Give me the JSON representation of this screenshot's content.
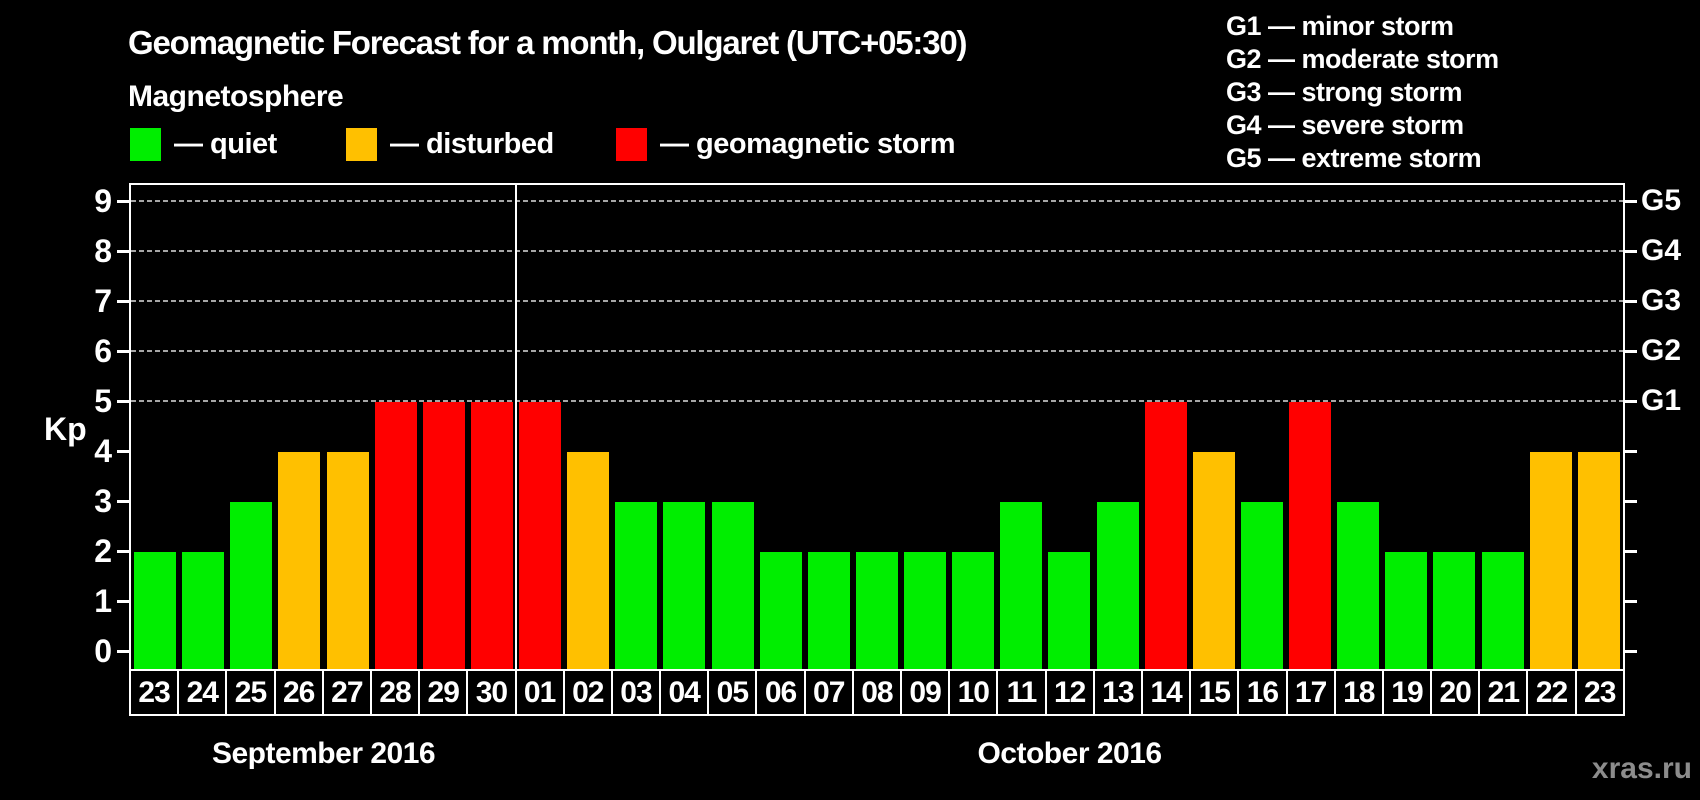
{
  "magnetosphere": {
    "heading": "Magnetosphere",
    "items": [
      {
        "key": "quiet",
        "label": "— quiet",
        "color": "#00ee00"
      },
      {
        "key": "disturbed",
        "label": "— disturbed",
        "color": "#ffc000"
      },
      {
        "key": "storm",
        "label": "— geomagnetic storm",
        "color": "#ff0000"
      }
    ]
  },
  "g_scale_legend": {
    "lines": [
      "G1 — minor storm",
      "G2 — moderate storm",
      "G3 — strong storm",
      "G4 — severe storm",
      "G5 — extreme storm"
    ]
  },
  "watermark": "xras.ru",
  "chart_data": {
    "type": "bar",
    "title": "Geomagnetic Forecast for a month, Oulgaret (UTC+05:30)",
    "ylabel": "Kp",
    "ylim": [
      0,
      9
    ],
    "yticks": [
      0,
      1,
      2,
      3,
      4,
      5,
      6,
      7,
      8,
      9
    ],
    "gridlines_at_kp": [
      5,
      6,
      7,
      8,
      9
    ],
    "grid_style": "dashed",
    "legend_position": "top-left",
    "right_axis_labels": [
      {
        "kp": 5,
        "label": "G1"
      },
      {
        "kp": 6,
        "label": "G2"
      },
      {
        "kp": 7,
        "label": "G3"
      },
      {
        "kp": 8,
        "label": "G4"
      },
      {
        "kp": 9,
        "label": "G5"
      }
    ],
    "months": [
      {
        "label": "September 2016",
        "count": 8
      },
      {
        "label": "October 2016",
        "count": 23
      }
    ],
    "categories": [
      "23",
      "24",
      "25",
      "26",
      "27",
      "28",
      "29",
      "30",
      "01",
      "02",
      "03",
      "04",
      "05",
      "06",
      "07",
      "08",
      "09",
      "10",
      "11",
      "12",
      "13",
      "14",
      "15",
      "16",
      "17",
      "18",
      "19",
      "20",
      "21",
      "22",
      "23"
    ],
    "values": [
      2,
      2,
      3,
      4,
      4,
      5,
      5,
      5,
      5,
      4,
      3,
      3,
      3,
      2,
      2,
      2,
      2,
      2,
      3,
      2,
      3,
      5,
      4,
      3,
      5,
      3,
      2,
      2,
      2,
      4,
      4
    ],
    "status": [
      "quiet",
      "quiet",
      "quiet",
      "disturbed",
      "disturbed",
      "storm",
      "storm",
      "storm",
      "storm",
      "disturbed",
      "quiet",
      "quiet",
      "quiet",
      "quiet",
      "quiet",
      "quiet",
      "quiet",
      "quiet",
      "quiet",
      "quiet",
      "quiet",
      "storm",
      "disturbed",
      "quiet",
      "storm",
      "quiet",
      "quiet",
      "quiet",
      "quiet",
      "disturbed",
      "disturbed"
    ],
    "status_colors": {
      "quiet": "#00ee00",
      "disturbed": "#ffc000",
      "storm": "#ff0000"
    }
  }
}
